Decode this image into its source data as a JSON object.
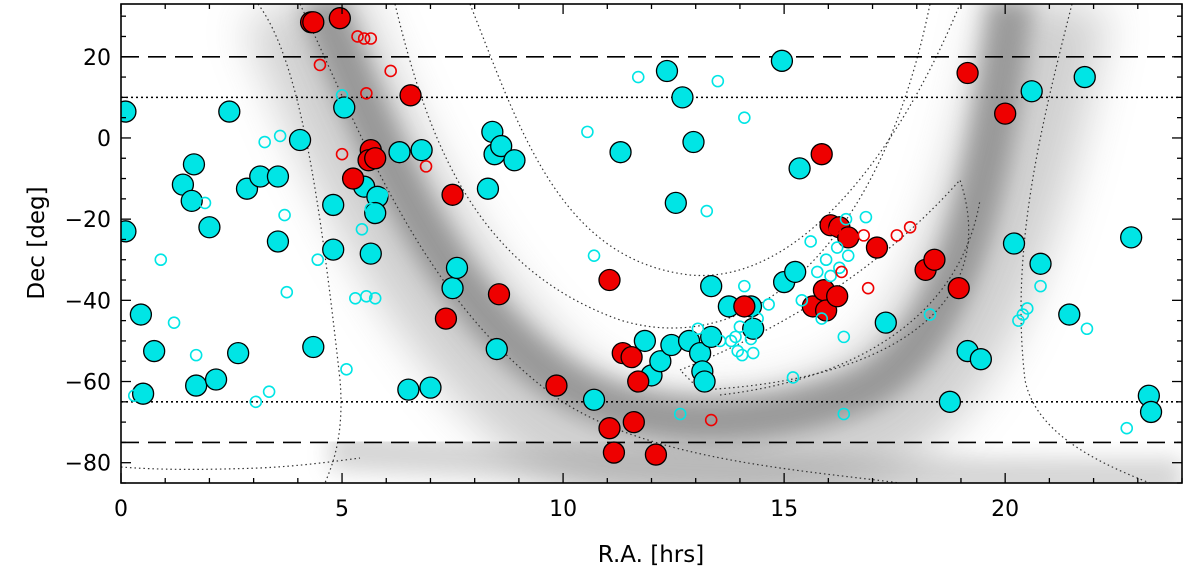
{
  "chart_data": {
    "type": "scatter",
    "title": "",
    "xlabel": "R.A. [hrs]",
    "ylabel": "Dec [deg]",
    "xlim": [
      0,
      24
    ],
    "ylim": [
      -85,
      33
    ],
    "xticks": [
      0,
      5,
      10,
      15,
      20
    ],
    "yticks": [
      20,
      0,
      -20,
      -40,
      -60,
      -80
    ],
    "reference_lines": [
      {
        "dec": 20,
        "style": "dashed"
      },
      {
        "dec": 10,
        "style": "dotted"
      },
      {
        "dec": -65,
        "style": "dotted"
      },
      {
        "dec": -75,
        "style": "dashed"
      }
    ],
    "colors": {
      "cyan": "#00e5e5",
      "red": "#ee0000",
      "band": "#7a7a7a",
      "axis": "#000000"
    },
    "series": [
      {
        "name": "cyan filled",
        "style": "filled-large",
        "color": "#00e5e5",
        "points": [
          [
            0.1,
            6.5
          ],
          [
            0.1,
            -23
          ],
          [
            0.45,
            -43.5
          ],
          [
            0.5,
            -63
          ],
          [
            0.75,
            -52.5
          ],
          [
            1.4,
            -11.5
          ],
          [
            1.65,
            -6.5
          ],
          [
            1.6,
            -15.5
          ],
          [
            1.7,
            -61
          ],
          [
            2.0,
            -22
          ],
          [
            2.15,
            -59.5
          ],
          [
            2.45,
            6.5
          ],
          [
            2.65,
            -53
          ],
          [
            2.85,
            -12.5
          ],
          [
            3.15,
            -9.5
          ],
          [
            3.55,
            -9.5
          ],
          [
            3.55,
            -25.5
          ],
          [
            4.05,
            -0.5
          ],
          [
            4.35,
            -51.5
          ],
          [
            4.8,
            -16.5
          ],
          [
            4.8,
            -27.5
          ],
          [
            5.05,
            7.5
          ],
          [
            5.5,
            -12
          ],
          [
            5.65,
            -28.5
          ],
          [
            5.8,
            -14.5
          ],
          [
            5.75,
            -18.5
          ],
          [
            6.3,
            -3.5
          ],
          [
            6.5,
            -62
          ],
          [
            6.8,
            -3
          ],
          [
            7.0,
            -61.5
          ],
          [
            7.5,
            -37
          ],
          [
            7.6,
            -32
          ],
          [
            8.3,
            -12.5
          ],
          [
            8.4,
            1.5
          ],
          [
            8.45,
            -4
          ],
          [
            8.5,
            -52
          ],
          [
            8.6,
            -2
          ],
          [
            8.9,
            -5.5
          ],
          [
            10.7,
            -64.5
          ],
          [
            11.3,
            -3.5
          ],
          [
            11.85,
            -50
          ],
          [
            12.0,
            -58.5
          ],
          [
            12.2,
            -55
          ],
          [
            12.35,
            16.5
          ],
          [
            12.45,
            -51
          ],
          [
            12.55,
            -16
          ],
          [
            12.7,
            10
          ],
          [
            12.85,
            -50
          ],
          [
            12.95,
            -1
          ],
          [
            13.1,
            -53
          ],
          [
            13.15,
            -57.5
          ],
          [
            13.2,
            -60
          ],
          [
            13.35,
            -49
          ],
          [
            13.35,
            -36.5
          ],
          [
            13.75,
            -41.5
          ],
          [
            14.25,
            -41.5
          ],
          [
            14.3,
            -47
          ],
          [
            14.95,
            19
          ],
          [
            15.0,
            -35.5
          ],
          [
            15.25,
            -33
          ],
          [
            15.35,
            -7.5
          ],
          [
            17.3,
            -45.5
          ],
          [
            18.75,
            -65
          ],
          [
            19.15,
            -52.5
          ],
          [
            19.45,
            -54.5
          ],
          [
            20.2,
            -26
          ],
          [
            20.6,
            11.5
          ],
          [
            20.8,
            -31
          ],
          [
            21.45,
            -43.5
          ],
          [
            21.8,
            15
          ],
          [
            22.85,
            -24.5
          ],
          [
            23.25,
            -63.5
          ],
          [
            23.3,
            -67.5
          ]
        ]
      },
      {
        "name": "red filled",
        "style": "filled-large",
        "color": "#ee0000",
        "points": [
          [
            4.3,
            28.5
          ],
          [
            4.35,
            28.5
          ],
          [
            4.95,
            29.5
          ],
          [
            5.25,
            -10
          ],
          [
            5.65,
            -3
          ],
          [
            5.6,
            -5.5
          ],
          [
            5.75,
            -5
          ],
          [
            6.55,
            10.5
          ],
          [
            7.35,
            -44.5
          ],
          [
            7.5,
            -14
          ],
          [
            8.55,
            -38.5
          ],
          [
            9.85,
            -61
          ],
          [
            11.05,
            -35
          ],
          [
            11.05,
            -71.5
          ],
          [
            11.15,
            -77.5
          ],
          [
            11.35,
            -53
          ],
          [
            11.55,
            -54
          ],
          [
            11.6,
            -70
          ],
          [
            11.7,
            -60
          ],
          [
            12.1,
            -78
          ],
          [
            14.1,
            -41.5
          ],
          [
            15.65,
            -41.5
          ],
          [
            15.85,
            -4
          ],
          [
            15.9,
            -37.5
          ],
          [
            15.95,
            -42.5
          ],
          [
            16.05,
            -21.5
          ],
          [
            16.2,
            -39
          ],
          [
            16.25,
            -22
          ],
          [
            16.45,
            -24.5
          ],
          [
            17.1,
            -27
          ],
          [
            18.2,
            -32.5
          ],
          [
            18.4,
            -30
          ],
          [
            18.95,
            -37
          ],
          [
            19.15,
            16
          ],
          [
            20.0,
            6
          ]
        ]
      },
      {
        "name": "cyan open",
        "style": "open-small",
        "color": "#00e5e5",
        "points": [
          [
            0.3,
            -63.5
          ],
          [
            0.9,
            -30
          ],
          [
            1.2,
            -45.5
          ],
          [
            1.7,
            -53.5
          ],
          [
            1.9,
            -16
          ],
          [
            3.05,
            -65
          ],
          [
            3.25,
            -1
          ],
          [
            3.35,
            -62.5
          ],
          [
            3.6,
            0.5
          ],
          [
            3.7,
            -19
          ],
          [
            3.75,
            -38
          ],
          [
            4.45,
            -30
          ],
          [
            5.0,
            10.5
          ],
          [
            5.1,
            -57
          ],
          [
            5.3,
            -39.5
          ],
          [
            5.45,
            -22.5
          ],
          [
            5.55,
            -39
          ],
          [
            5.65,
            -17.5
          ],
          [
            5.75,
            -39.5
          ],
          [
            5.9,
            -14
          ],
          [
            10.55,
            1.5
          ],
          [
            10.7,
            -29
          ],
          [
            11.7,
            15
          ],
          [
            12.65,
            -68
          ],
          [
            13.05,
            -47
          ],
          [
            13.15,
            -60.5
          ],
          [
            13.25,
            -18
          ],
          [
            13.5,
            14
          ],
          [
            13.55,
            -50
          ],
          [
            13.8,
            -50
          ],
          [
            13.9,
            -49
          ],
          [
            13.95,
            -52.5
          ],
          [
            14.0,
            -46.5
          ],
          [
            14.05,
            -53.5
          ],
          [
            14.1,
            -36.5
          ],
          [
            14.1,
            5
          ],
          [
            14.25,
            -49.5
          ],
          [
            14.3,
            -53
          ],
          [
            14.4,
            -44.5
          ],
          [
            14.65,
            -41
          ],
          [
            15.2,
            -59
          ],
          [
            15.4,
            -40
          ],
          [
            15.6,
            -25.5
          ],
          [
            15.75,
            -33
          ],
          [
            15.85,
            -44.5
          ],
          [
            15.95,
            -30
          ],
          [
            16.05,
            -34
          ],
          [
            16.2,
            -27
          ],
          [
            16.25,
            -32
          ],
          [
            16.35,
            -49
          ],
          [
            16.35,
            -68
          ],
          [
            16.4,
            -20
          ],
          [
            16.45,
            -29
          ],
          [
            16.85,
            -19.5
          ],
          [
            18.3,
            -43.5
          ],
          [
            20.3,
            -45
          ],
          [
            20.4,
            -43.5
          ],
          [
            20.5,
            -42
          ],
          [
            20.8,
            -36.5
          ],
          [
            21.85,
            -47
          ],
          [
            22.75,
            -71.5
          ]
        ]
      },
      {
        "name": "red open",
        "style": "open-small",
        "color": "#ee0000",
        "points": [
          [
            4.5,
            18
          ],
          [
            5.0,
            -4
          ],
          [
            5.35,
            25
          ],
          [
            5.5,
            24.5
          ],
          [
            5.55,
            11
          ],
          [
            5.65,
            24.5
          ],
          [
            6.1,
            16.5
          ],
          [
            6.9,
            -7
          ],
          [
            13.35,
            -69.5
          ],
          [
            16.15,
            -22.5
          ],
          [
            16.3,
            -33
          ],
          [
            16.8,
            -24
          ],
          [
            16.9,
            -37
          ],
          [
            17.55,
            -24
          ],
          [
            17.85,
            -22
          ]
        ]
      }
    ]
  }
}
